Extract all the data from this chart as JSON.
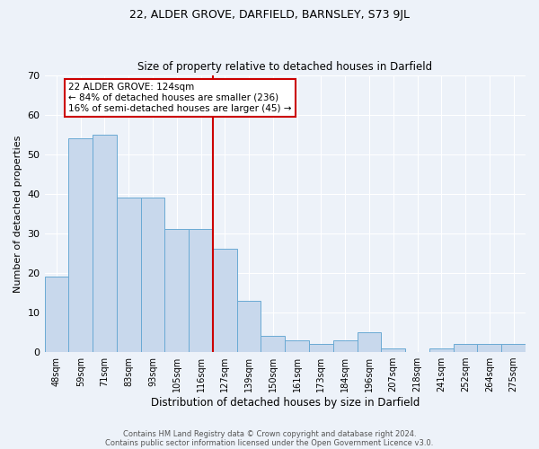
{
  "title": "22, ALDER GROVE, DARFIELD, BARNSLEY, S73 9JL",
  "subtitle": "Size of property relative to detached houses in Darfield",
  "xlabel": "Distribution of detached houses by size in Darfield",
  "ylabel": "Number of detached properties",
  "categories": [
    "48sqm",
    "59sqm",
    "71sqm",
    "83sqm",
    "93sqm",
    "105sqm",
    "116sqm",
    "127sqm",
    "139sqm",
    "150sqm",
    "161sqm",
    "173sqm",
    "184sqm",
    "196sqm",
    "207sqm",
    "218sqm",
    "241sqm",
    "252sqm",
    "264sqm",
    "275sqm"
  ],
  "values": [
    19,
    54,
    55,
    39,
    39,
    31,
    31,
    26,
    13,
    4,
    3,
    2,
    3,
    5,
    1,
    0,
    1,
    2,
    2,
    2
  ],
  "bar_color": "#c8d8ec",
  "bar_edgecolor": "#6aaad4",
  "marker_index": 7,
  "annotation_line1": "22 ALDER GROVE: 124sqm",
  "annotation_line2": "← 84% of detached houses are smaller (236)",
  "annotation_line3": "16% of semi-detached houses are larger (45) →",
  "marker_color": "#cc0000",
  "ylim": [
    0,
    70
  ],
  "yticks": [
    0,
    10,
    20,
    30,
    40,
    50,
    60,
    70
  ],
  "footer_line1": "Contains HM Land Registry data © Crown copyright and database right 2024.",
  "footer_line2": "Contains public sector information licensed under the Open Government Licence v3.0.",
  "bg_color": "#edf2f9",
  "plot_bg_color": "#edf2f9",
  "title_fontsize": 9,
  "subtitle_fontsize": 8.5,
  "annotation_fontsize": 7.5
}
